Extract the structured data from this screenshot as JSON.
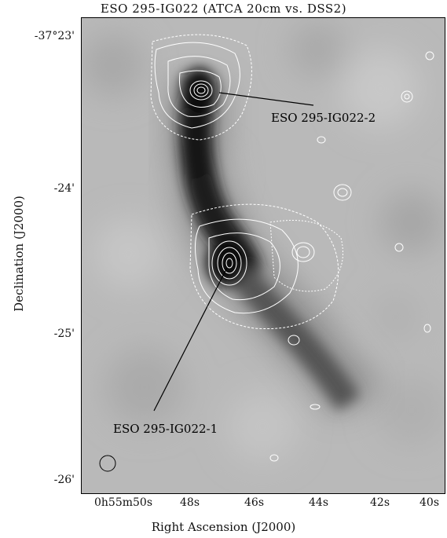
{
  "figure": {
    "title": "ESO 295-IG022 (ATCA 20cm vs. DSS2)",
    "xlabel": "Right Ascension (J2000)",
    "ylabel": "Declination (J2000)"
  },
  "dec_ticks": [
    "-37°23'",
    "-24'",
    "-25'",
    "-26'"
  ],
  "ra_ticks": [
    "0h55m50s",
    "48s",
    "46s",
    "44s",
    "42s",
    "40s"
  ],
  "annotations": {
    "source2": "ESO 295-IG022-2",
    "source1": "ESO 295-IG022-1"
  },
  "colors": {
    "background_gray": "#b9b9b9",
    "galaxy_dark": "#101010",
    "contour": "#ffffff"
  }
}
